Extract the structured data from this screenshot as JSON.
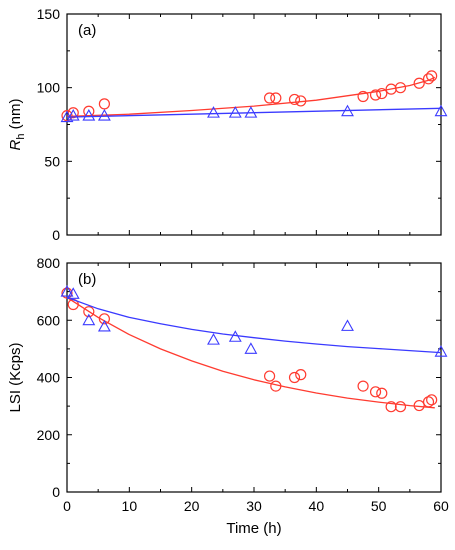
{
  "colors": {
    "red": "#ff3b30",
    "blue": "#3a3aff",
    "axis": "#000000"
  },
  "chart_data": [
    {
      "type": "scatter",
      "panel_label": "(a)",
      "xlabel": "",
      "ylabel": "R",
      "ylabel_sub": "h",
      "ylabel_unit": " (nm)",
      "xlim": [
        0,
        60
      ],
      "ylim": [
        0,
        150
      ],
      "xticks": [
        0,
        10,
        20,
        30,
        40,
        50,
        60
      ],
      "yticks": [
        0,
        50,
        100,
        150
      ],
      "grid": false,
      "series": [
        {
          "marker": "circle",
          "color": "red",
          "points": [
            [
              0,
              81
            ],
            [
              1,
              83
            ],
            [
              3.5,
              84
            ],
            [
              6,
              89
            ],
            [
              32.5,
              93
            ],
            [
              33.5,
              93
            ],
            [
              36.5,
              92
            ],
            [
              37.5,
              91
            ],
            [
              47.5,
              94
            ],
            [
              49.5,
              95
            ],
            [
              50.5,
              96
            ],
            [
              52,
              99
            ],
            [
              53.5,
              100
            ],
            [
              56.5,
              103
            ],
            [
              58,
              106
            ],
            [
              58.5,
              108
            ]
          ],
          "fit": [
            [
              0,
              80.5
            ],
            [
              10,
              82
            ],
            [
              20,
              84.5
            ],
            [
              30,
              87.5
            ],
            [
              40,
              91.5
            ],
            [
              50,
              97.5
            ],
            [
              55,
              101.5
            ],
            [
              58,
              105
            ],
            [
              59,
              107
            ]
          ]
        },
        {
          "marker": "triangle",
          "color": "blue",
          "points": [
            [
              0,
              80
            ],
            [
              1,
              81
            ],
            [
              3.5,
              81
            ],
            [
              6,
              81
            ],
            [
              23.5,
              83
            ],
            [
              27,
              83
            ],
            [
              29.5,
              83
            ],
            [
              45,
              84
            ],
            [
              60,
              84
            ]
          ],
          "fit": [
            [
              0,
              80
            ],
            [
              60,
              86
            ]
          ]
        }
      ]
    },
    {
      "type": "scatter",
      "panel_label": "(b)",
      "xlabel": "Time (h)",
      "ylabel": "LSI (Kcps)",
      "xlim": [
        0,
        60
      ],
      "ylim": [
        0,
        800
      ],
      "xticks": [
        0,
        10,
        20,
        30,
        40,
        50,
        60
      ],
      "yticks": [
        0,
        200,
        400,
        600,
        800
      ],
      "grid": false,
      "series": [
        {
          "marker": "circle",
          "color": "red",
          "points": [
            [
              0,
              695
            ],
            [
              1,
              655
            ],
            [
              3.5,
              630
            ],
            [
              6,
              605
            ],
            [
              32.5,
              405
            ],
            [
              33.5,
              370
            ],
            [
              36.5,
              400
            ],
            [
              37.5,
              410
            ],
            [
              47.5,
              370
            ],
            [
              49.5,
              350
            ],
            [
              50.5,
              345
            ],
            [
              52,
              298
            ],
            [
              53.5,
              298
            ],
            [
              56.5,
              302
            ],
            [
              58,
              315
            ],
            [
              58.5,
              322
            ]
          ],
          "fit": [
            [
              0,
              680
            ],
            [
              5,
              610
            ],
            [
              10,
              550
            ],
            [
              15,
              500
            ],
            [
              20,
              458
            ],
            [
              25,
              422
            ],
            [
              30,
              392
            ],
            [
              35,
              367
            ],
            [
              40,
              346
            ],
            [
              45,
              328
            ],
            [
              50,
              314
            ],
            [
              55,
              302
            ],
            [
              59,
              294
            ]
          ]
        },
        {
          "marker": "triangle",
          "color": "blue",
          "points": [
            [
              0,
              700
            ],
            [
              1,
              692
            ],
            [
              3.5,
              600
            ],
            [
              6,
              578
            ],
            [
              23.5,
              532
            ],
            [
              27,
              542
            ],
            [
              29.5,
              500
            ],
            [
              45,
              580
            ],
            [
              60,
              490
            ]
          ],
          "fit": [
            [
              0,
              680
            ],
            [
              5,
              640
            ],
            [
              10,
              610
            ],
            [
              15,
              588
            ],
            [
              20,
              568
            ],
            [
              25,
              552
            ],
            [
              30,
              539
            ],
            [
              35,
              527
            ],
            [
              40,
              517
            ],
            [
              45,
              508
            ],
            [
              50,
              501
            ],
            [
              55,
              494
            ],
            [
              60,
              487
            ]
          ]
        }
      ]
    }
  ]
}
